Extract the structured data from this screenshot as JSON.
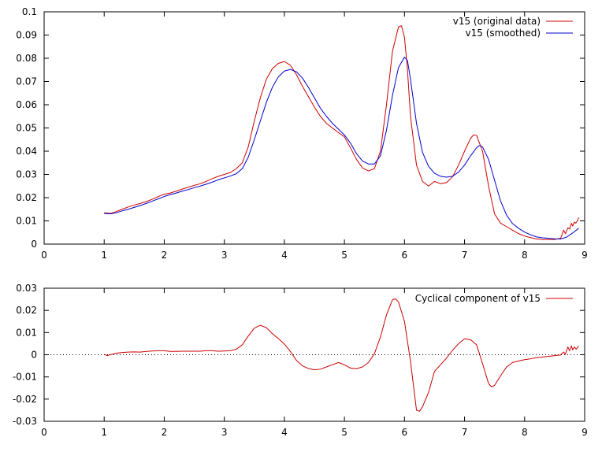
{
  "chart_data": [
    {
      "type": "line",
      "title": "",
      "xlabel": "",
      "ylabel": "",
      "xlim": [
        0,
        9
      ],
      "ylim": [
        0,
        0.1
      ],
      "x_ticks": [
        "0",
        "1",
        "2",
        "3",
        "4",
        "5",
        "6",
        "7",
        "8",
        "9"
      ],
      "y_ticks": [
        "0",
        "0.01",
        "0.02",
        "0.03",
        "0.04",
        "0.05",
        "0.06",
        "0.07",
        "0.08",
        "0.09",
        "0.1"
      ],
      "grid": false,
      "legend_position": "top-right",
      "series": [
        {
          "name": "v15 (original data)",
          "color": "#cc0000",
          "points": [
            [
              1.0,
              0.0135
            ],
            [
              1.1,
              0.0132
            ],
            [
              1.2,
              0.014
            ],
            [
              1.3,
              0.015
            ],
            [
              1.4,
              0.016
            ],
            [
              1.5,
              0.0168
            ],
            [
              1.6,
              0.0175
            ],
            [
              1.7,
              0.0183
            ],
            [
              1.8,
              0.0193
            ],
            [
              1.9,
              0.0205
            ],
            [
              2.0,
              0.0215
            ],
            [
              2.1,
              0.022
            ],
            [
              2.2,
              0.0228
            ],
            [
              2.3,
              0.0237
            ],
            [
              2.4,
              0.0245
            ],
            [
              2.5,
              0.0253
            ],
            [
              2.6,
              0.026
            ],
            [
              2.7,
              0.027
            ],
            [
              2.8,
              0.0282
            ],
            [
              2.9,
              0.0292
            ],
            [
              3.0,
              0.03
            ],
            [
              3.1,
              0.0308
            ],
            [
              3.2,
              0.0325
            ],
            [
              3.3,
              0.035
            ],
            [
              3.4,
              0.042
            ],
            [
              3.5,
              0.053
            ],
            [
              3.6,
              0.063
            ],
            [
              3.7,
              0.071
            ],
            [
              3.8,
              0.0755
            ],
            [
              3.9,
              0.0778
            ],
            [
              4.0,
              0.0786
            ],
            [
              4.1,
              0.077
            ],
            [
              4.2,
              0.073
            ],
            [
              4.3,
              0.068
            ],
            [
              4.4,
              0.0635
            ],
            [
              4.5,
              0.059
            ],
            [
              4.6,
              0.055
            ],
            [
              4.7,
              0.052
            ],
            [
              4.8,
              0.05
            ],
            [
              4.9,
              0.048
            ],
            [
              5.0,
              0.0462
            ],
            [
              5.1,
              0.0415
            ],
            [
              5.2,
              0.0365
            ],
            [
              5.3,
              0.0328
            ],
            [
              5.4,
              0.0315
            ],
            [
              5.5,
              0.0325
            ],
            [
              5.6,
              0.04
            ],
            [
              5.7,
              0.06
            ],
            [
              5.8,
              0.083
            ],
            [
              5.9,
              0.0935
            ],
            [
              5.95,
              0.094
            ],
            [
              6.0,
              0.089
            ],
            [
              6.05,
              0.075
            ],
            [
              6.1,
              0.055
            ],
            [
              6.2,
              0.034
            ],
            [
              6.3,
              0.027
            ],
            [
              6.4,
              0.025
            ],
            [
              6.5,
              0.027
            ],
            [
              6.6,
              0.026
            ],
            [
              6.7,
              0.0265
            ],
            [
              6.8,
              0.029
            ],
            [
              6.9,
              0.034
            ],
            [
              7.0,
              0.04
            ],
            [
              7.1,
              0.0455
            ],
            [
              7.15,
              0.047
            ],
            [
              7.2,
              0.0468
            ],
            [
              7.3,
              0.04
            ],
            [
              7.4,
              0.025
            ],
            [
              7.5,
              0.013
            ],
            [
              7.6,
              0.009
            ],
            [
              7.7,
              0.0075
            ],
            [
              7.8,
              0.006
            ],
            [
              7.9,
              0.0045
            ],
            [
              8.0,
              0.0035
            ],
            [
              8.1,
              0.0028
            ],
            [
              8.2,
              0.0022
            ],
            [
              8.3,
              0.002
            ],
            [
              8.4,
              0.002
            ],
            [
              8.5,
              0.002
            ],
            [
              8.6,
              0.0025
            ],
            [
              8.65,
              0.006
            ],
            [
              8.68,
              0.0045
            ],
            [
              8.72,
              0.007
            ],
            [
              8.75,
              0.0065
            ],
            [
              8.78,
              0.009
            ],
            [
              8.8,
              0.0078
            ],
            [
              8.83,
              0.0095
            ],
            [
              8.85,
              0.009
            ],
            [
              8.88,
              0.01
            ],
            [
              8.9,
              0.0115
            ]
          ]
        },
        {
          "name": "v15 (smoothed)",
          "color": "#0000cc",
          "points": [
            [
              1.0,
              0.0132
            ],
            [
              1.1,
              0.013
            ],
            [
              1.2,
              0.0135
            ],
            [
              1.3,
              0.0143
            ],
            [
              1.4,
              0.015
            ],
            [
              1.5,
              0.0158
            ],
            [
              1.6,
              0.0166
            ],
            [
              1.7,
              0.0175
            ],
            [
              1.8,
              0.0185
            ],
            [
              1.9,
              0.0195
            ],
            [
              2.0,
              0.0205
            ],
            [
              2.1,
              0.0213
            ],
            [
              2.2,
              0.022
            ],
            [
              2.3,
              0.0228
            ],
            [
              2.4,
              0.0235
            ],
            [
              2.5,
              0.0243
            ],
            [
              2.6,
              0.025
            ],
            [
              2.7,
              0.0258
            ],
            [
              2.8,
              0.0267
            ],
            [
              2.9,
              0.0277
            ],
            [
              3.0,
              0.0285
            ],
            [
              3.1,
              0.0293
            ],
            [
              3.2,
              0.0303
            ],
            [
              3.3,
              0.0325
            ],
            [
              3.4,
              0.0375
            ],
            [
              3.5,
              0.045
            ],
            [
              3.6,
              0.053
            ],
            [
              3.7,
              0.061
            ],
            [
              3.8,
              0.0675
            ],
            [
              3.9,
              0.072
            ],
            [
              4.0,
              0.0745
            ],
            [
              4.1,
              0.0752
            ],
            [
              4.2,
              0.0742
            ],
            [
              4.3,
              0.0715
            ],
            [
              4.4,
              0.0675
            ],
            [
              4.5,
              0.063
            ],
            [
              4.6,
              0.0585
            ],
            [
              4.7,
              0.055
            ],
            [
              4.8,
              0.052
            ],
            [
              4.9,
              0.0495
            ],
            [
              5.0,
              0.047
            ],
            [
              5.1,
              0.0435
            ],
            [
              5.2,
              0.039
            ],
            [
              5.3,
              0.0358
            ],
            [
              5.4,
              0.0345
            ],
            [
              5.5,
              0.0345
            ],
            [
              5.6,
              0.038
            ],
            [
              5.7,
              0.049
            ],
            [
              5.8,
              0.064
            ],
            [
              5.9,
              0.076
            ],
            [
              6.0,
              0.0805
            ],
            [
              6.05,
              0.079
            ],
            [
              6.1,
              0.071
            ],
            [
              6.2,
              0.052
            ],
            [
              6.3,
              0.0395
            ],
            [
              6.4,
              0.0335
            ],
            [
              6.5,
              0.0305
            ],
            [
              6.6,
              0.0292
            ],
            [
              6.7,
              0.0288
            ],
            [
              6.8,
              0.0292
            ],
            [
              6.9,
              0.031
            ],
            [
              7.0,
              0.034
            ],
            [
              7.1,
              0.038
            ],
            [
              7.2,
              0.0415
            ],
            [
              7.25,
              0.0425
            ],
            [
              7.3,
              0.0418
            ],
            [
              7.4,
              0.0365
            ],
            [
              7.5,
              0.0275
            ],
            [
              7.6,
              0.0185
            ],
            [
              7.7,
              0.0125
            ],
            [
              7.8,
              0.0088
            ],
            [
              7.9,
              0.0068
            ],
            [
              8.0,
              0.0052
            ],
            [
              8.1,
              0.004
            ],
            [
              8.2,
              0.0031
            ],
            [
              8.3,
              0.0027
            ],
            [
              8.4,
              0.0025
            ],
            [
              8.5,
              0.0023
            ],
            [
              8.6,
              0.0022
            ],
            [
              8.7,
              0.003
            ],
            [
              8.8,
              0.0048
            ],
            [
              8.9,
              0.0068
            ]
          ]
        }
      ]
    },
    {
      "type": "line",
      "title": "",
      "xlabel": "",
      "ylabel": "",
      "xlim": [
        0,
        9
      ],
      "ylim": [
        -0.03,
        0.03
      ],
      "x_ticks": [
        "0",
        "1",
        "2",
        "3",
        "4",
        "5",
        "6",
        "7",
        "8",
        "9"
      ],
      "y_ticks": [
        "-0.03",
        "-0.02",
        "-0.01",
        "0",
        "0.01",
        "0.02",
        "0.03"
      ],
      "grid": false,
      "zero_line": "dotted",
      "legend_position": "top-right",
      "series": [
        {
          "name": "Cyclical component of v15",
          "color": "#cc0000",
          "points": [
            [
              1.0,
              0.0002
            ],
            [
              1.05,
              -0.0004
            ],
            [
              1.1,
              0.0
            ],
            [
              1.2,
              0.0007
            ],
            [
              1.3,
              0.001
            ],
            [
              1.4,
              0.0012
            ],
            [
              1.5,
              0.0013
            ],
            [
              1.6,
              0.0012
            ],
            [
              1.7,
              0.0015
            ],
            [
              1.8,
              0.0017
            ],
            [
              1.9,
              0.0018
            ],
            [
              2.0,
              0.0018
            ],
            [
              2.1,
              0.0015
            ],
            [
              2.2,
              0.0015
            ],
            [
              2.3,
              0.0016
            ],
            [
              2.4,
              0.0016
            ],
            [
              2.5,
              0.0016
            ],
            [
              2.6,
              0.0016
            ],
            [
              2.7,
              0.0018
            ],
            [
              2.8,
              0.0018
            ],
            [
              2.9,
              0.0016
            ],
            [
              3.0,
              0.0017
            ],
            [
              3.1,
              0.0018
            ],
            [
              3.2,
              0.0025
            ],
            [
              3.3,
              0.0045
            ],
            [
              3.4,
              0.0085
            ],
            [
              3.5,
              0.012
            ],
            [
              3.6,
              0.0133
            ],
            [
              3.7,
              0.0122
            ],
            [
              3.8,
              0.0095
            ],
            [
              3.9,
              0.0073
            ],
            [
              4.0,
              0.0048
            ],
            [
              4.1,
              0.0015
            ],
            [
              4.2,
              -0.0025
            ],
            [
              4.3,
              -0.005
            ],
            [
              4.4,
              -0.0062
            ],
            [
              4.5,
              -0.0068
            ],
            [
              4.6,
              -0.0065
            ],
            [
              4.7,
              -0.0055
            ],
            [
              4.8,
              -0.0045
            ],
            [
              4.9,
              -0.0035
            ],
            [
              5.0,
              -0.0045
            ],
            [
              5.1,
              -0.006
            ],
            [
              5.2,
              -0.0063
            ],
            [
              5.3,
              -0.0055
            ],
            [
              5.4,
              -0.0035
            ],
            [
              5.5,
              0.0005
            ],
            [
              5.6,
              0.008
            ],
            [
              5.7,
              0.018
            ],
            [
              5.8,
              0.0248
            ],
            [
              5.85,
              0.0252
            ],
            [
              5.9,
              0.0238
            ],
            [
              6.0,
              0.015
            ],
            [
              6.1,
              -0.003
            ],
            [
              6.2,
              -0.025
            ],
            [
              6.25,
              -0.0255
            ],
            [
              6.3,
              -0.0235
            ],
            [
              6.4,
              -0.017
            ],
            [
              6.5,
              -0.0075
            ],
            [
              6.6,
              -0.0045
            ],
            [
              6.7,
              -0.0015
            ],
            [
              6.8,
              0.002
            ],
            [
              6.9,
              0.005
            ],
            [
              7.0,
              0.0072
            ],
            [
              7.1,
              0.0068
            ],
            [
              7.2,
              0.0045
            ],
            [
              7.3,
              -0.004
            ],
            [
              7.4,
              -0.013
            ],
            [
              7.45,
              -0.0145
            ],
            [
              7.5,
              -0.0138
            ],
            [
              7.6,
              -0.0095
            ],
            [
              7.7,
              -0.0055
            ],
            [
              7.8,
              -0.0035
            ],
            [
              7.9,
              -0.0028
            ],
            [
              8.0,
              -0.0022
            ],
            [
              8.1,
              -0.0018
            ],
            [
              8.2,
              -0.0013
            ],
            [
              8.3,
              -0.001
            ],
            [
              8.4,
              -0.0007
            ],
            [
              8.5,
              -0.0004
            ],
            [
              8.6,
              -0.0001
            ],
            [
              8.65,
              0.0012
            ],
            [
              8.68,
              0.0002
            ],
            [
              8.72,
              0.0035
            ],
            [
              8.75,
              0.0018
            ],
            [
              8.78,
              0.004
            ],
            [
              8.8,
              0.0022
            ],
            [
              8.83,
              0.0035
            ],
            [
              8.86,
              0.0025
            ],
            [
              8.9,
              0.004
            ]
          ]
        }
      ]
    }
  ]
}
